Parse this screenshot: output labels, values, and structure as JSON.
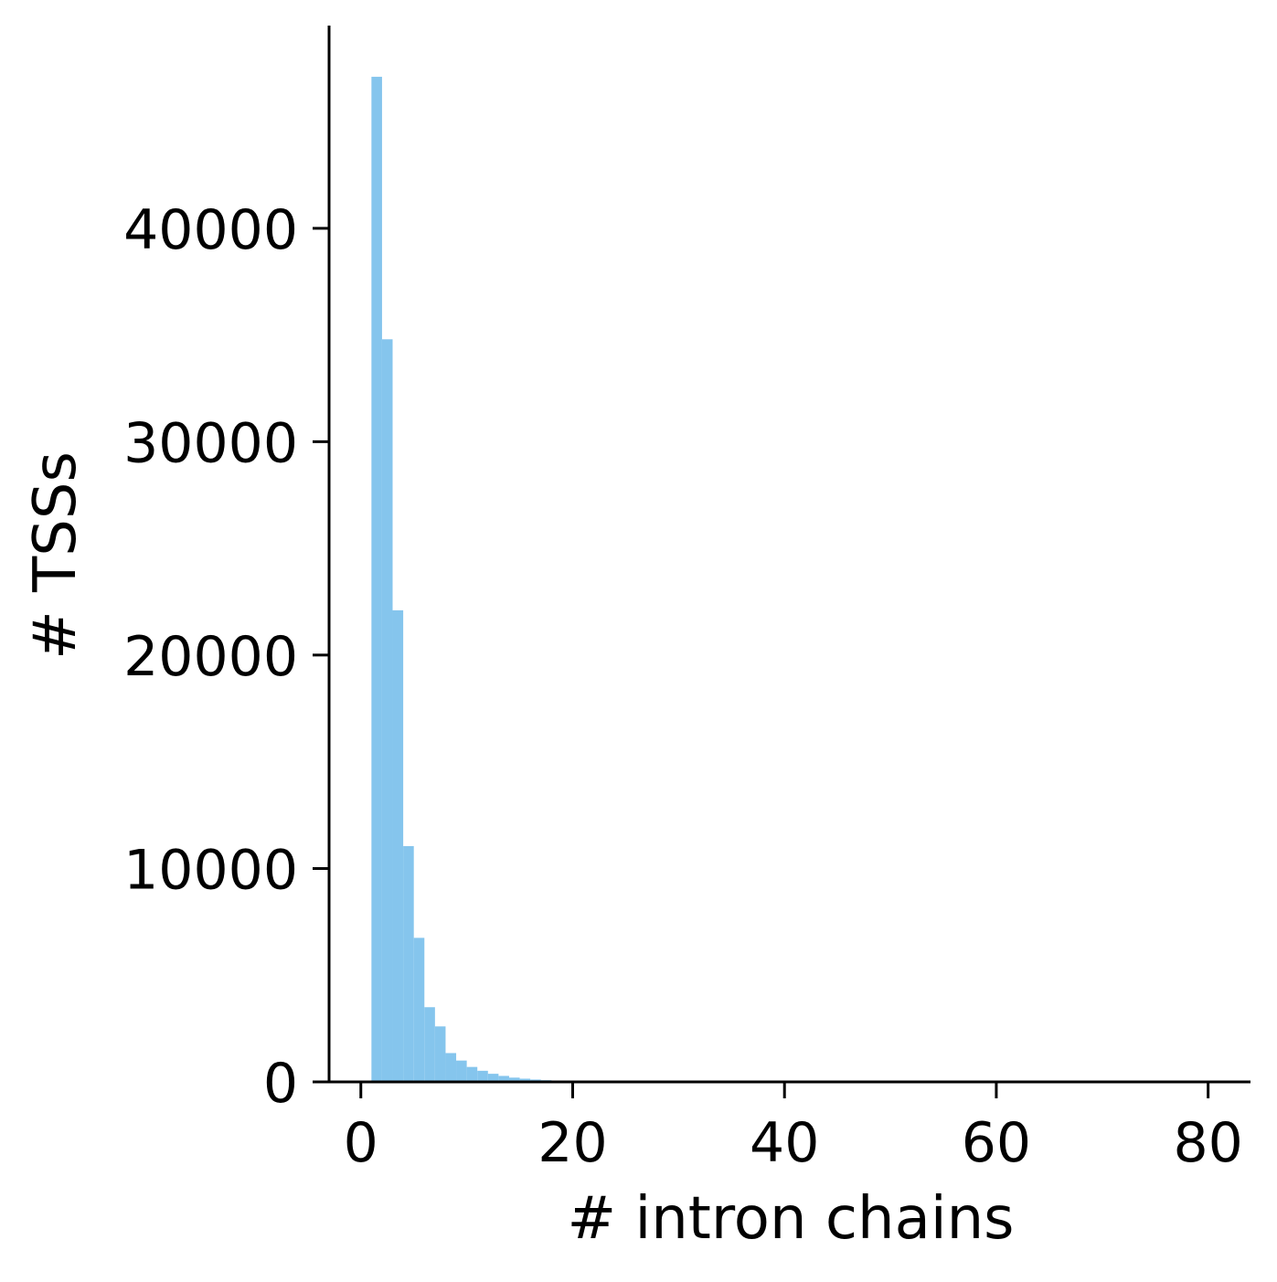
{
  "chart_data": {
    "type": "bar",
    "title": "",
    "xlabel": "# intron chains",
    "ylabel": "# TSSs",
    "xlim": [
      -3,
      84
    ],
    "ylim": [
      0,
      49500
    ],
    "xticks": [
      0,
      20,
      40,
      60,
      80
    ],
    "yticks": [
      0,
      10000,
      20000,
      30000,
      40000
    ],
    "xtick_labels": [
      "0",
      "20",
      "40",
      "60",
      "80"
    ],
    "ytick_labels": [
      "0",
      "10000",
      "20000",
      "30000",
      "40000"
    ],
    "bin_width": 1,
    "bins": [
      {
        "x0": 1,
        "x1": 2,
        "count": 47100
      },
      {
        "x0": 2,
        "x1": 3,
        "count": 34800
      },
      {
        "x0": 3,
        "x1": 4,
        "count": 22100
      },
      {
        "x0": 4,
        "x1": 5,
        "count": 11050
      },
      {
        "x0": 5,
        "x1": 6,
        "count": 6750
      },
      {
        "x0": 6,
        "x1": 7,
        "count": 3500
      },
      {
        "x0": 7,
        "x1": 8,
        "count": 2600
      },
      {
        "x0": 8,
        "x1": 9,
        "count": 1350
      },
      {
        "x0": 9,
        "x1": 10,
        "count": 1000
      },
      {
        "x0": 10,
        "x1": 11,
        "count": 700
      },
      {
        "x0": 11,
        "x1": 12,
        "count": 520
      },
      {
        "x0": 12,
        "x1": 13,
        "count": 380
      },
      {
        "x0": 13,
        "x1": 14,
        "count": 280
      },
      {
        "x0": 14,
        "x1": 15,
        "count": 200
      },
      {
        "x0": 15,
        "x1": 16,
        "count": 150
      },
      {
        "x0": 16,
        "x1": 17,
        "count": 110
      },
      {
        "x0": 17,
        "x1": 18,
        "count": 80
      },
      {
        "x0": 18,
        "x1": 19,
        "count": 55
      },
      {
        "x0": 19,
        "x1": 20,
        "count": 40
      },
      {
        "x0": 20,
        "x1": 21,
        "count": 30
      },
      {
        "x0": 21,
        "x1": 22,
        "count": 22
      },
      {
        "x0": 22,
        "x1": 23,
        "count": 16
      },
      {
        "x0": 23,
        "x1": 24,
        "count": 12
      },
      {
        "x0": 24,
        "x1": 25,
        "count": 9
      },
      {
        "x0": 25,
        "x1": 26,
        "count": 7
      },
      {
        "x0": 26,
        "x1": 27,
        "count": 5
      },
      {
        "x0": 27,
        "x1": 28,
        "count": 4
      },
      {
        "x0": 28,
        "x1": 29,
        "count": 3
      },
      {
        "x0": 29,
        "x1": 30,
        "count": 2
      }
    ],
    "grid": false,
    "legend": "none",
    "colors": {
      "bar": "#85c5ed",
      "axis": "#000000"
    }
  }
}
